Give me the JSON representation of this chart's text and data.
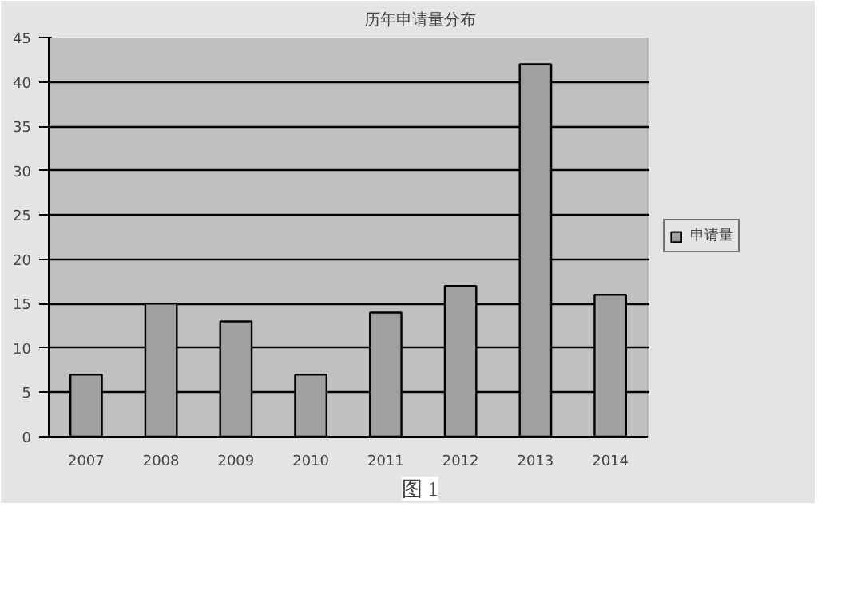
{
  "chart_data": {
    "type": "bar",
    "title": "历年申请量分布",
    "categories": [
      "2007",
      "2008",
      "2009",
      "2010",
      "2011",
      "2012",
      "2013",
      "2014"
    ],
    "series": [
      {
        "name": "申请量",
        "color": "#a0a0a0",
        "values": [
          7,
          15,
          13,
          7,
          14,
          17,
          42,
          16
        ]
      }
    ],
    "ylim": [
      0,
      45
    ],
    "yticks": [
      0,
      5,
      10,
      15,
      20,
      25,
      30,
      35,
      40,
      45
    ],
    "grid": "y",
    "legend": "right",
    "annotations": [
      "图 1"
    ]
  }
}
